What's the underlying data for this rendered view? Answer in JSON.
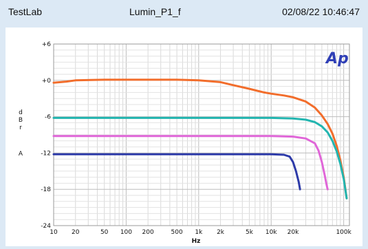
{
  "header": {
    "left": "TestLab",
    "center": "Lumin_P1_f",
    "right": "02/08/22 10:46:47"
  },
  "logo_text": "Ap",
  "chart_data": {
    "type": "line",
    "title": "",
    "xlabel": "Hz",
    "ylabel_letters": [
      "d",
      "B",
      "r",
      "A"
    ],
    "x_scale": "log",
    "xlim": [
      10,
      120000
    ],
    "ylim": [
      -24,
      6
    ],
    "grid": true,
    "x_ticks": [
      {
        "value": 10,
        "label": "10"
      },
      {
        "value": 20,
        "label": "20"
      },
      {
        "value": 50,
        "label": "50"
      },
      {
        "value": 100,
        "label": "100"
      },
      {
        "value": 200,
        "label": "200"
      },
      {
        "value": 500,
        "label": "500"
      },
      {
        "value": 1000,
        "label": "1k"
      },
      {
        "value": 2000,
        "label": "2k"
      },
      {
        "value": 5000,
        "label": "5k"
      },
      {
        "value": 10000,
        "label": "10k"
      },
      {
        "value": 20000,
        "label": "20k"
      },
      {
        "value": 100000,
        "label": "100k"
      }
    ],
    "y_ticks": [
      {
        "value": 6,
        "label": "+6"
      },
      {
        "value": 0,
        "label": "+0"
      },
      {
        "value": -6,
        "label": "-6"
      },
      {
        "value": -12,
        "label": "-12"
      },
      {
        "value": -18,
        "label": "-18"
      },
      {
        "value": -24,
        "label": "-24"
      }
    ],
    "series": [
      {
        "color": "#f26d2b",
        "x": [
          10,
          15,
          20,
          50,
          100,
          500,
          1000,
          2000,
          3000,
          5000,
          8000,
          10000,
          15000,
          20000,
          30000,
          40000,
          50000,
          60000,
          70000,
          80000,
          90000,
          100000,
          110000
        ],
        "y": [
          -0.4,
          -0.2,
          0.0,
          0.1,
          0.1,
          0.1,
          0.0,
          -0.3,
          -0.8,
          -1.4,
          -2.0,
          -2.2,
          -2.5,
          -2.8,
          -3.5,
          -4.5,
          -5.8,
          -7.2,
          -8.8,
          -10.8,
          -13.2,
          -16.0,
          -19.5
        ]
      },
      {
        "color": "#22b5b0",
        "x": [
          10,
          1000,
          10000,
          20000,
          30000,
          40000,
          50000,
          60000,
          70000,
          80000,
          90000,
          100000,
          110000
        ],
        "y": [
          -6.2,
          -6.2,
          -6.2,
          -6.3,
          -6.5,
          -6.9,
          -7.6,
          -8.6,
          -10.0,
          -11.7,
          -13.8,
          -16.3,
          -19.5
        ]
      },
      {
        "color": "#e066d8",
        "x": [
          10,
          1000,
          10000,
          20000,
          30000,
          40000,
          45000,
          50000,
          55000,
          58000,
          60000
        ],
        "y": [
          -9.2,
          -9.2,
          -9.2,
          -9.3,
          -9.6,
          -10.4,
          -11.6,
          -13.5,
          -15.8,
          -17.2,
          -18.0
        ]
      },
      {
        "color": "#2d3aa8",
        "x": [
          10,
          1000,
          10000,
          15000,
          18000,
          20000,
          22000,
          24000,
          25000
        ],
        "y": [
          -12.2,
          -12.2,
          -12.2,
          -12.3,
          -12.6,
          -13.5,
          -15.0,
          -16.8,
          -18.0
        ]
      }
    ]
  }
}
